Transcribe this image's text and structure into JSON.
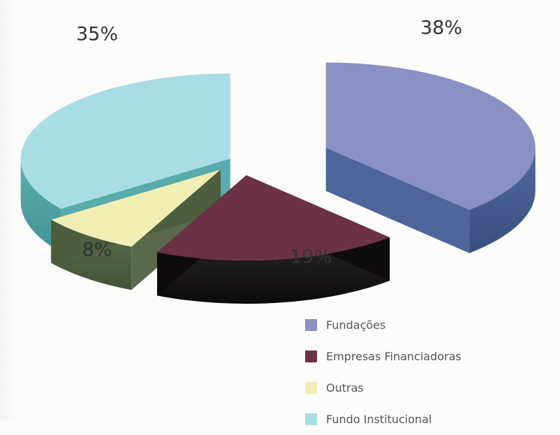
{
  "chart_data": {
    "type": "pie",
    "three_d": true,
    "exploded": true,
    "slices": [
      {
        "name": "Fundações",
        "value": 38,
        "label": "38%",
        "top_color": "#8a91c4",
        "side_color": "#3e5890"
      },
      {
        "name": "Empresas Financiadoras",
        "value": 19,
        "label": "19%",
        "top_color": "#6b3147",
        "side_color": "#0e0b0d"
      },
      {
        "name": "Outras",
        "value": 8,
        "label": "8%",
        "top_color": "#f1eeb5",
        "side_color": "#4b5d3d"
      },
      {
        "name": "Fundo Institucional",
        "value": 35,
        "label": "35%",
        "top_color": "#a9dde5",
        "side_color": "#4aa5a6"
      }
    ],
    "legend_position": "bottom-right"
  }
}
